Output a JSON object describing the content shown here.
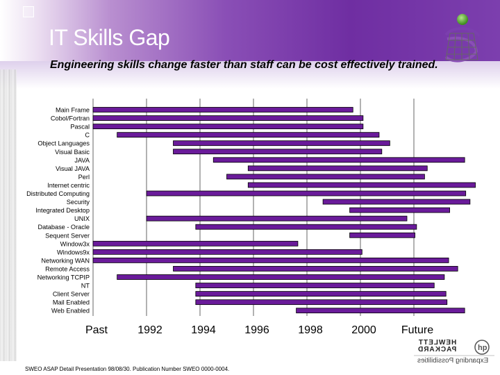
{
  "slide": {
    "title": "IT Skills Gap",
    "subtitle": "Engineering skills change faster than staff can be cost effectively trained.",
    "footer": "SWEO ASAP Detail Presentation 98/08/30. Publication Number SWEO 0000-0004.",
    "hp_logo": {
      "line1": "HEWLETT",
      "line2": "PACKARD",
      "tagline": "Expanding Possibilities"
    }
  },
  "colors": {
    "bar": "#6a1b9a",
    "bar_stroke": "#000000",
    "grid": "#666666",
    "title": "#ffffff"
  },
  "chart_data": {
    "type": "bar",
    "orientation": "horizontal",
    "ticks": [
      "Past",
      "1992",
      "1994",
      "1996",
      "1998",
      "2000",
      "Future"
    ],
    "grid": true,
    "bars": [
      {
        "label": "Main Frame",
        "start": 0.0,
        "end": 4.86
      },
      {
        "label": "Cobol/Fortran",
        "start": 0.0,
        "end": 5.05
      },
      {
        "label": "Pascal",
        "start": 0.0,
        "end": 5.05
      },
      {
        "label": "C",
        "start": 0.45,
        "end": 5.35
      },
      {
        "label": "Object Languages",
        "start": 1.5,
        "end": 5.55
      },
      {
        "label": "Visual Basic",
        "start": 1.5,
        "end": 5.4
      },
      {
        "label": "JAVA",
        "start": 2.25,
        "end": 6.95
      },
      {
        "label": "Visual JAVA",
        "start": 2.9,
        "end": 6.25
      },
      {
        "label": "Perl",
        "start": 2.5,
        "end": 6.2
      },
      {
        "label": "Internet centric",
        "start": 2.9,
        "end": 7.15
      },
      {
        "label": "Distributed Computing",
        "start": 1.0,
        "end": 6.97
      },
      {
        "label": "Security",
        "start": 4.3,
        "end": 7.05
      },
      {
        "label": "Integrated Desktop",
        "start": 4.8,
        "end": 6.67
      },
      {
        "label": "UNIX",
        "start": 1.0,
        "end": 5.87
      },
      {
        "label": "Database - Oracle",
        "start": 1.92,
        "end": 6.05
      },
      {
        "label": "Sequent Server",
        "start": 4.8,
        "end": 6.02
      },
      {
        "label": "Window3x",
        "start": 0.0,
        "end": 3.83
      },
      {
        "label": "Windows9x",
        "start": 0.0,
        "end": 5.03
      },
      {
        "label": "Networking  WAN",
        "start": 0.0,
        "end": 6.65
      },
      {
        "label": "Remote Access",
        "start": 1.5,
        "end": 6.82
      },
      {
        "label": "Networking  TCPIP",
        "start": 0.45,
        "end": 6.57
      },
      {
        "label": "NT",
        "start": 1.92,
        "end": 6.38
      },
      {
        "label": "Client Server",
        "start": 1.92,
        "end": 6.6
      },
      {
        "label": "Mail Enabled",
        "start": 1.92,
        "end": 6.62
      },
      {
        "label": "Web Enabled",
        "start": 3.8,
        "end": 6.95
      }
    ]
  }
}
